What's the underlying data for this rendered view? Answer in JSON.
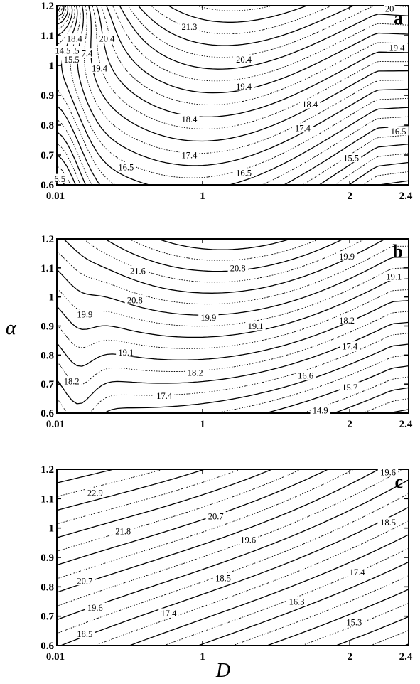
{
  "figure": {
    "y_axis_label": "α",
    "x_axis_label": "D"
  },
  "chart_data": [
    {
      "type": "contour",
      "panel_label": "a",
      "xlabel": "",
      "ylabel": "",
      "x_ticks": [
        "0.01",
        "1",
        "2",
        "2.4"
      ],
      "y_ticks": [
        "0.6",
        "0.7",
        "0.8",
        "0.9",
        "1",
        "1.1",
        "1.2"
      ],
      "xlim": [
        0.01,
        2.4
      ],
      "ylim": [
        0.6,
        1.2
      ],
      "contour_labels": [
        {
          "text": "21.3",
          "x": 0.91,
          "y": 1.13
        },
        {
          "text": "20.4",
          "x": 0.35,
          "y": 1.09
        },
        {
          "text": "20.4",
          "x": 1.28,
          "y": 1.02
        },
        {
          "text": "19.4",
          "x": 0.3,
          "y": 0.99
        },
        {
          "text": "19.4",
          "x": 1.28,
          "y": 0.93
        },
        {
          "text": "19.4",
          "x": 2.32,
          "y": 1.06
        },
        {
          "text": "18.4",
          "x": 0.91,
          "y": 0.82
        },
        {
          "text": "18.4",
          "x": 1.73,
          "y": 0.87
        },
        {
          "text": "17.4",
          "x": 0.91,
          "y": 0.7
        },
        {
          "text": "17.4",
          "x": 1.68,
          "y": 0.79
        },
        {
          "text": "16.5",
          "x": 0.48,
          "y": 0.66
        },
        {
          "text": "16.5",
          "x": 1.28,
          "y": 0.64
        },
        {
          "text": "16.5",
          "x": 2.33,
          "y": 0.78
        },
        {
          "text": "15.5",
          "x": 2.01,
          "y": 0.69
        },
        {
          "text": "18.4",
          "x": 0.13,
          "y": 1.09
        },
        {
          "text": "17.4",
          "x": 0.2,
          "y": 1.04
        },
        {
          "text": "16.5",
          "x": 0.11,
          "y": 1.05
        },
        {
          "text": "15.5",
          "x": 0.11,
          "y": 1.02
        },
        {
          "text": "14.5",
          "x": 0.05,
          "y": 1.05
        },
        {
          "text": "20",
          "x": 2.27,
          "y": 1.19
        },
        {
          "text": "6.5",
          "x": 0.03,
          "y": 0.62
        }
      ]
    },
    {
      "type": "contour",
      "panel_label": "b",
      "xlabel": "",
      "ylabel": "",
      "x_ticks": [
        "0.01",
        "1",
        "2",
        "2.4"
      ],
      "y_ticks": [
        "0.6",
        "0.7",
        "0.8",
        "0.9",
        "1",
        "1.1",
        "1.2"
      ],
      "xlim": [
        0.01,
        2.4
      ],
      "ylim": [
        0.6,
        1.2
      ],
      "contour_labels": [
        {
          "text": "21.6",
          "x": 0.56,
          "y": 1.09
        },
        {
          "text": "20.8",
          "x": 1.24,
          "y": 1.1
        },
        {
          "text": "20.8",
          "x": 0.54,
          "y": 0.99
        },
        {
          "text": "19.9",
          "x": 1.98,
          "y": 1.14
        },
        {
          "text": "19.9",
          "x": 0.2,
          "y": 0.94
        },
        {
          "text": "19.9",
          "x": 1.04,
          "y": 0.93
        },
        {
          "text": "19.1",
          "x": 2.3,
          "y": 1.07
        },
        {
          "text": "19.1",
          "x": 1.36,
          "y": 0.9
        },
        {
          "text": "19.1",
          "x": 0.48,
          "y": 0.81
        },
        {
          "text": "18.2",
          "x": 1.98,
          "y": 0.92
        },
        {
          "text": "18.2",
          "x": 0.95,
          "y": 0.74
        },
        {
          "text": "18.2",
          "x": 0.11,
          "y": 0.71
        },
        {
          "text": "17.4",
          "x": 2.0,
          "y": 0.83
        },
        {
          "text": "17.4",
          "x": 0.74,
          "y": 0.66
        },
        {
          "text": "16.6",
          "x": 1.7,
          "y": 0.73
        },
        {
          "text": "15.7",
          "x": 2.0,
          "y": 0.69
        },
        {
          "text": "14.9",
          "x": 1.8,
          "y": 0.61
        }
      ]
    },
    {
      "type": "contour",
      "panel_label": "c",
      "xlabel": "",
      "ylabel": "",
      "x_ticks": [
        "0.01",
        "1",
        "2",
        "2.4"
      ],
      "y_ticks": [
        "0.6",
        "0.7",
        "0.8",
        "0.9",
        "1",
        "1.1",
        "1.2"
      ],
      "xlim": [
        0.01,
        2.4
      ],
      "ylim": [
        0.6,
        1.2
      ],
      "contour_labels": [
        {
          "text": "22.9",
          "x": 0.27,
          "y": 1.12
        },
        {
          "text": "21.8",
          "x": 0.46,
          "y": 0.99
        },
        {
          "text": "20.7",
          "x": 1.09,
          "y": 1.04
        },
        {
          "text": "20.7",
          "x": 0.2,
          "y": 0.82
        },
        {
          "text": "19.6",
          "x": 2.26,
          "y": 1.19
        },
        {
          "text": "19.6",
          "x": 1.31,
          "y": 0.96
        },
        {
          "text": "19.6",
          "x": 0.27,
          "y": 0.73
        },
        {
          "text": "18.5",
          "x": 2.26,
          "y": 1.02
        },
        {
          "text": "18.5",
          "x": 1.14,
          "y": 0.83
        },
        {
          "text": "18.5",
          "x": 0.2,
          "y": 0.64
        },
        {
          "text": "17.4",
          "x": 2.05,
          "y": 0.85
        },
        {
          "text": "17.4",
          "x": 0.77,
          "y": 0.71
        },
        {
          "text": "16.3",
          "x": 1.64,
          "y": 0.75
        },
        {
          "text": "15.3",
          "x": 2.03,
          "y": 0.68
        }
      ]
    }
  ]
}
